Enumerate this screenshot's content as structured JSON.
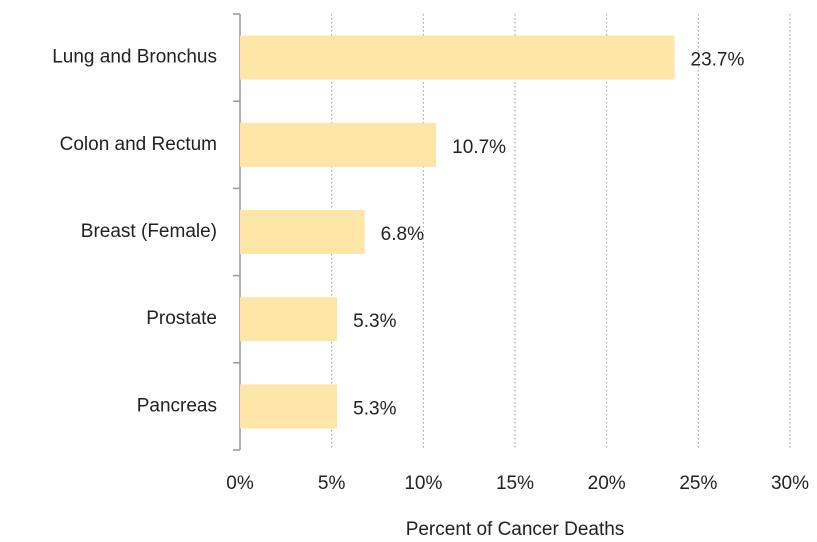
{
  "chart_data": {
    "type": "bar",
    "orientation": "horizontal",
    "x_label": "Percent of Cancer Deaths",
    "categories": [
      "Lung and Bronchus",
      "Colon and Rectum",
      "Breast (Female)",
      "Prostate",
      "Pancreas"
    ],
    "values": [
      23.7,
      10.7,
      6.8,
      5.3,
      5.3
    ],
    "value_labels": [
      "23.7%",
      "10.7%",
      "6.8%",
      "5.3%",
      "5.3%"
    ],
    "color": "#fde6a8",
    "xlim": [
      0,
      30
    ],
    "xticks": [
      {
        "value": 0,
        "label": "0%"
      },
      {
        "value": 5,
        "label": "5%"
      },
      {
        "value": 10,
        "label": "10%"
      },
      {
        "value": 15,
        "label": "15%"
      },
      {
        "value": 20,
        "label": "20%"
      },
      {
        "value": 25,
        "label": "25%"
      },
      {
        "value": 30,
        "label": "30%"
      }
    ],
    "grid": true
  }
}
